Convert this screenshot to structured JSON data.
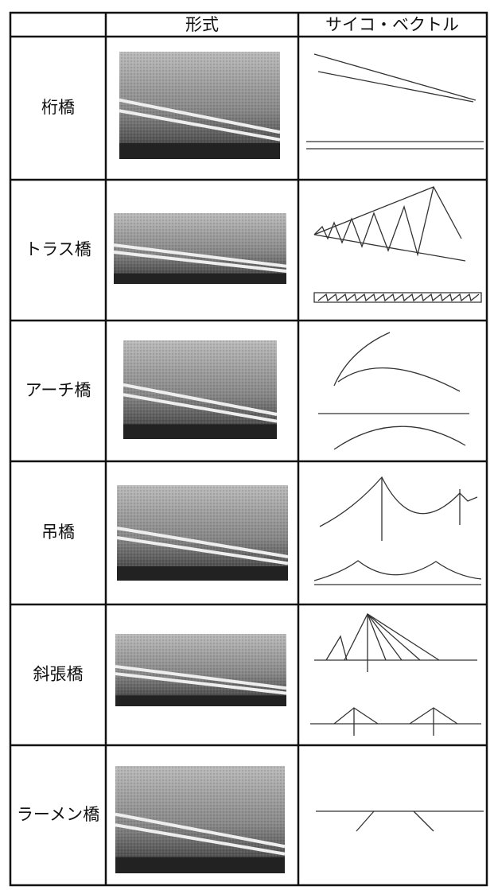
{
  "table": {
    "columns": [
      "形式",
      "サイコ・ベクトル"
    ],
    "rows": [
      "桁橋",
      "トラス橋",
      "アーチ橋",
      "吊橋",
      "斜張橋",
      "ラーメン橋"
    ]
  }
}
